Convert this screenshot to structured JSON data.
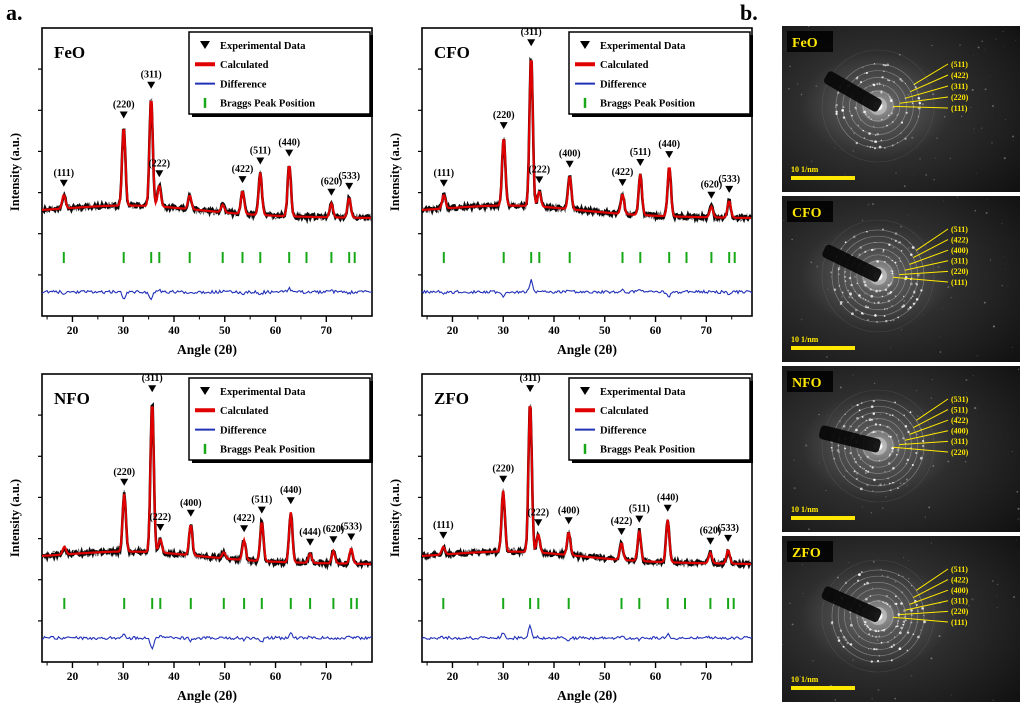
{
  "figure": {
    "panel_a_label": "a.",
    "panel_b_label": "b."
  },
  "colors": {
    "experimental": "#000000",
    "calculated": "#e00000",
    "difference": "#2231b8",
    "bragg": "#17a817",
    "saed_accent": "#ffe800"
  },
  "legend": {
    "items": [
      {
        "label": "Experimental Data",
        "marker": "triangle",
        "color": "#000000",
        "thick": false
      },
      {
        "label": "Calculated",
        "marker": "line",
        "color": "#e00000",
        "thick": true
      },
      {
        "label": "Difference",
        "marker": "line",
        "color": "#2231b8",
        "thick": false
      },
      {
        "label": "Braggs Peak Position",
        "marker": "tick",
        "color": "#17a817",
        "thick": false
      }
    ]
  },
  "chart_data": [
    {
      "type": "line",
      "title": "FeO",
      "xlabel": "Angle (2θ)",
      "ylabel": "Intensity (a.u.)",
      "xlim": [
        14,
        79
      ],
      "xticks": [
        20,
        30,
        40,
        50,
        60,
        70
      ],
      "series": [
        "Experimental Data",
        "Calculated",
        "Difference",
        "Braggs Peak Position"
      ],
      "peaks": [
        {
          "hkl": "(111)",
          "two_theta": 18.3,
          "intensity": 9
        },
        {
          "hkl": "(220)",
          "two_theta": 30.1,
          "intensity": 52
        },
        {
          "hkl": "(311)",
          "two_theta": 35.5,
          "intensity": 72
        },
        {
          "hkl": "(222)",
          "two_theta": 37.1,
          "intensity": 14
        },
        {
          "hkl": "",
          "two_theta": 43.1,
          "intensity": 9
        },
        {
          "hkl": "",
          "two_theta": 49.6,
          "intensity": 5
        },
        {
          "hkl": "(422)",
          "two_theta": 53.5,
          "intensity": 15
        },
        {
          "hkl": "(511)",
          "two_theta": 57.0,
          "intensity": 28
        },
        {
          "hkl": "(440)",
          "two_theta": 62.7,
          "intensity": 34
        },
        {
          "hkl": "(620)",
          "two_theta": 71.0,
          "intensity": 9
        },
        {
          "hkl": "(533)",
          "two_theta": 74.5,
          "intensity": 13
        }
      ],
      "bragg_positions": [
        18.3,
        30.1,
        35.5,
        37.1,
        43.1,
        49.6,
        53.5,
        57.0,
        62.7,
        66.1,
        71.0,
        74.5,
        75.6
      ]
    },
    {
      "type": "line",
      "title": "CFO",
      "xlabel": "Angle (2θ)",
      "ylabel": "Intensity (a.u.)",
      "xlim": [
        14,
        79
      ],
      "xticks": [
        20,
        30,
        40,
        50,
        60,
        70
      ],
      "series": [
        "Experimental Data",
        "Calculated",
        "Difference",
        "Braggs Peak Position"
      ],
      "peaks": [
        {
          "hkl": "(111)",
          "two_theta": 18.3,
          "intensity": 9
        },
        {
          "hkl": "(220)",
          "two_theta": 30.1,
          "intensity": 45
        },
        {
          "hkl": "(311)",
          "two_theta": 35.5,
          "intensity": 100
        },
        {
          "hkl": "(222)",
          "two_theta": 37.1,
          "intensity": 10
        },
        {
          "hkl": "(400)",
          "two_theta": 43.1,
          "intensity": 22
        },
        {
          "hkl": "(422)",
          "two_theta": 53.5,
          "intensity": 13
        },
        {
          "hkl": "(511)",
          "two_theta": 57.0,
          "intensity": 27
        },
        {
          "hkl": "(440)",
          "two_theta": 62.7,
          "intensity": 33
        },
        {
          "hkl": "(620)",
          "two_theta": 71.0,
          "intensity": 7
        },
        {
          "hkl": "(533)",
          "two_theta": 74.5,
          "intensity": 11
        }
      ],
      "bragg_positions": [
        18.3,
        30.1,
        35.5,
        37.1,
        43.1,
        53.5,
        57.0,
        62.7,
        66.1,
        71.0,
        74.5,
        75.6
      ]
    },
    {
      "type": "line",
      "title": "NFO",
      "xlabel": "Angle (2θ)",
      "ylabel": "Intensity (a.u.)",
      "xlim": [
        14,
        79
      ],
      "xticks": [
        20,
        30,
        40,
        50,
        60,
        70
      ],
      "series": [
        "Experimental Data",
        "Calculated",
        "Difference",
        "Braggs Peak Position"
      ],
      "peaks": [
        {
          "hkl": "",
          "two_theta": 18.4,
          "intensity": 5
        },
        {
          "hkl": "(220)",
          "two_theta": 30.2,
          "intensity": 38
        },
        {
          "hkl": "(311)",
          "two_theta": 35.7,
          "intensity": 100
        },
        {
          "hkl": "(222)",
          "two_theta": 37.3,
          "intensity": 9
        },
        {
          "hkl": "(400)",
          "two_theta": 43.3,
          "intensity": 20
        },
        {
          "hkl": "",
          "two_theta": 49.8,
          "intensity": 4
        },
        {
          "hkl": "(422)",
          "two_theta": 53.8,
          "intensity": 13
        },
        {
          "hkl": "(511)",
          "two_theta": 57.3,
          "intensity": 26
        },
        {
          "hkl": "(440)",
          "two_theta": 63.0,
          "intensity": 33
        },
        {
          "hkl": "(444)",
          "two_theta": 66.8,
          "intensity": 6
        },
        {
          "hkl": "(620)",
          "two_theta": 71.4,
          "intensity": 8
        },
        {
          "hkl": "(533)",
          "two_theta": 74.9,
          "intensity": 10
        }
      ],
      "bragg_positions": [
        18.4,
        30.2,
        35.7,
        37.3,
        43.3,
        49.8,
        53.8,
        57.3,
        63.0,
        66.8,
        71.4,
        74.9,
        76.0
      ]
    },
    {
      "type": "line",
      "title": "ZFO",
      "xlabel": "Angle (2θ)",
      "ylabel": "Intensity (a.u.)",
      "xlim": [
        14,
        79
      ],
      "xticks": [
        20,
        30,
        40,
        50,
        60,
        70
      ],
      "series": [
        "Experimental Data",
        "Calculated",
        "Difference",
        "Braggs Peak Position"
      ],
      "peaks": [
        {
          "hkl": "(111)",
          "two_theta": 18.2,
          "intensity": 5
        },
        {
          "hkl": "(220)",
          "two_theta": 30.0,
          "intensity": 40
        },
        {
          "hkl": "(311)",
          "two_theta": 35.3,
          "intensity": 100
        },
        {
          "hkl": "(222)",
          "two_theta": 36.9,
          "intensity": 12
        },
        {
          "hkl": "(400)",
          "two_theta": 42.9,
          "intensity": 15
        },
        {
          "hkl": "(422)",
          "two_theta": 53.3,
          "intensity": 11
        },
        {
          "hkl": "(511)",
          "two_theta": 56.8,
          "intensity": 20
        },
        {
          "hkl": "(440)",
          "two_theta": 62.4,
          "intensity": 28
        },
        {
          "hkl": "(620)",
          "two_theta": 70.8,
          "intensity": 7
        },
        {
          "hkl": "(533)",
          "two_theta": 74.3,
          "intensity": 9
        }
      ],
      "bragg_positions": [
        18.2,
        30.0,
        35.3,
        36.9,
        42.9,
        53.3,
        56.8,
        62.4,
        65.8,
        70.8,
        74.3,
        75.4
      ]
    }
  ],
  "saed": {
    "scale_label": "10 1/nm",
    "panels": [
      {
        "name": "FeO",
        "rings": [
          "(511)",
          "(422)",
          "(311)",
          "(220)",
          "(111)"
        ]
      },
      {
        "name": "CFO",
        "rings": [
          "(511)",
          "(422)",
          "(400)",
          "(311)",
          "(220)",
          "(111)"
        ]
      },
      {
        "name": "NFO",
        "rings": [
          "(531)",
          "(511)",
          "(422)",
          "(400)",
          "(311)",
          "(220)"
        ]
      },
      {
        "name": "ZFO",
        "rings": [
          "(511)",
          "(422)",
          "(400)",
          "(311)",
          "(220)",
          "(111)"
        ]
      }
    ]
  }
}
